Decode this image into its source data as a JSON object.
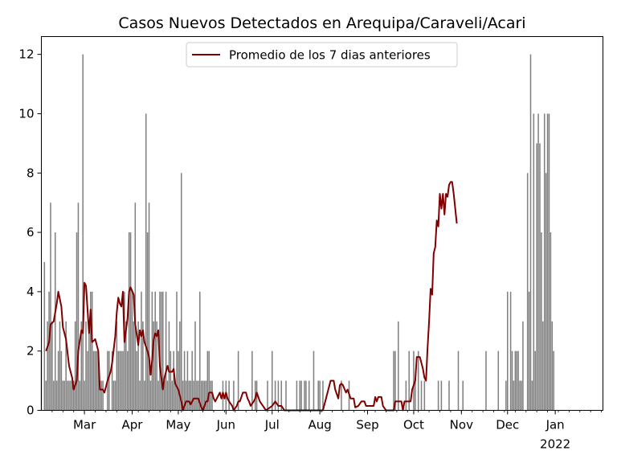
{
  "chart_data": {
    "type": "bar+line",
    "title": "Casos Nuevos Detectados en Arequipa/Caraveli/Acari",
    "xlabel": "",
    "ylabel": "",
    "x_range": [
      "2021-02-01",
      "2022-02-01"
    ],
    "ylim": [
      0,
      12.6
    ],
    "y_ticks": [
      0,
      2,
      4,
      6,
      8,
      10,
      12
    ],
    "x_ticks": [
      {
        "date": "2021-03-01",
        "label": "Mar",
        "sub": ""
      },
      {
        "date": "2021-04-01",
        "label": "Apr",
        "sub": ""
      },
      {
        "date": "2021-05-01",
        "label": "May",
        "sub": ""
      },
      {
        "date": "2021-06-01",
        "label": "Jun",
        "sub": ""
      },
      {
        "date": "2021-07-01",
        "label": "Jul",
        "sub": ""
      },
      {
        "date": "2021-08-01",
        "label": "Aug",
        "sub": ""
      },
      {
        "date": "2021-09-01",
        "label": "Sep",
        "sub": ""
      },
      {
        "date": "2021-10-01",
        "label": "Oct",
        "sub": ""
      },
      {
        "date": "2021-11-01",
        "label": "Nov",
        "sub": ""
      },
      {
        "date": "2021-12-01",
        "label": "Dec",
        "sub": ""
      },
      {
        "date": "2022-01-01",
        "label": "Jan",
        "sub": "2022"
      }
    ],
    "grid": false,
    "legend": {
      "placement": "top-center",
      "entries": [
        "Promedio de los 7 dias anteriores"
      ]
    },
    "colors": {
      "bars": "#808080",
      "line": "#800000"
    },
    "series": [
      {
        "kind": "bar",
        "start_date": "2021-02-01",
        "values": [
          2,
          0,
          5,
          1,
          3,
          4,
          7,
          3,
          1,
          6,
          1,
          2,
          3,
          2,
          1,
          1,
          3,
          1,
          1,
          1,
          1,
          1,
          3,
          6,
          7,
          1,
          3,
          12,
          1,
          3,
          2,
          3,
          4,
          4,
          2,
          2,
          2,
          2,
          1,
          1,
          1,
          0,
          0,
          2,
          2,
          0,
          2,
          1,
          1,
          3,
          2,
          2,
          2,
          2,
          4,
          3,
          2,
          6,
          6,
          4,
          3,
          7,
          2,
          3,
          1,
          4,
          3,
          1,
          10,
          6,
          7,
          1,
          4,
          3,
          4,
          3,
          1,
          4,
          4,
          4,
          1,
          4,
          1,
          3,
          2,
          1,
          2,
          1,
          4,
          2,
          3,
          8,
          1,
          2,
          1,
          2,
          1,
          1,
          2,
          1,
          3,
          1,
          1,
          4,
          1,
          1,
          1,
          1,
          2,
          2,
          1,
          1,
          0,
          0,
          0,
          0,
          0,
          0,
          1,
          0,
          1,
          0,
          1,
          0,
          0,
          1,
          0,
          0,
          2,
          0,
          0,
          0,
          0,
          0,
          0,
          0,
          0,
          2,
          0,
          1,
          1,
          0,
          0,
          0,
          0,
          0,
          0,
          1,
          0,
          0,
          2,
          0,
          1,
          0,
          1,
          0,
          1,
          0,
          0,
          1,
          0,
          0,
          0,
          0,
          0,
          0,
          1,
          0,
          1,
          1,
          0,
          1,
          1,
          0,
          1,
          0,
          0,
          2,
          0,
          0,
          1,
          1,
          0,
          1,
          0,
          0,
          0,
          0,
          0,
          0,
          0,
          0,
          0,
          0,
          0,
          1,
          0,
          0,
          0,
          0,
          1,
          0,
          0,
          0,
          0,
          0,
          0,
          0,
          0,
          0,
          0,
          0,
          0,
          0,
          0,
          0,
          0,
          0,
          0,
          0,
          0,
          0,
          0,
          0,
          0,
          0,
          0,
          0,
          0,
          2,
          2,
          0,
          3,
          0,
          0,
          0,
          0,
          1,
          0,
          2,
          0,
          0,
          2,
          1,
          0,
          2,
          0,
          1,
          0,
          1,
          0,
          0,
          0,
          0,
          0,
          0,
          0,
          0,
          1,
          0,
          1,
          0,
          0,
          0,
          0,
          1,
          0,
          0,
          0,
          0,
          0,
          2,
          0,
          0,
          1,
          0,
          0,
          0,
          0,
          0,
          0,
          0,
          0,
          0,
          0,
          0,
          0,
          0,
          0,
          2,
          0,
          0,
          0,
          0,
          0,
          0,
          0,
          2,
          0,
          0,
          0,
          0,
          1,
          4,
          0,
          4,
          2,
          1,
          2,
          2,
          2,
          1,
          1,
          3,
          0,
          0,
          8,
          4,
          12,
          1,
          10,
          2,
          9,
          10,
          9,
          6,
          3,
          10,
          8,
          10,
          10,
          6,
          3,
          2
        ]
      },
      {
        "kind": "line",
        "name": "Promedio de los 7 dias anteriores",
        "start_date": "2021-02-04",
        "points": [
          [
            0,
            2.0
          ],
          [
            2,
            2.3
          ],
          [
            3,
            2.9
          ],
          [
            5,
            3.0
          ],
          [
            6,
            3.3
          ],
          [
            7,
            3.6
          ],
          [
            8,
            4.0
          ],
          [
            10,
            3.5
          ],
          [
            11,
            2.8
          ],
          [
            13,
            2.4
          ],
          [
            15,
            1.5
          ],
          [
            17,
            1.1
          ],
          [
            18,
            0.7
          ],
          [
            20,
            1.0
          ],
          [
            21,
            2.0
          ],
          [
            23,
            2.7
          ],
          [
            24,
            2.6
          ],
          [
            25,
            4.3
          ],
          [
            26,
            4.2
          ],
          [
            27,
            3.4
          ],
          [
            28,
            2.6
          ],
          [
            29,
            3.4
          ],
          [
            30,
            2.3
          ],
          [
            32,
            2.4
          ],
          [
            34,
            2.0
          ],
          [
            35,
            0.7
          ],
          [
            37,
            0.7
          ],
          [
            38,
            0.6
          ],
          [
            40,
            1.0
          ],
          [
            42,
            1.3
          ],
          [
            43,
            1.6
          ],
          [
            45,
            2.5
          ],
          [
            46,
            3.3
          ],
          [
            47,
            3.8
          ],
          [
            48,
            3.6
          ],
          [
            49,
            3.5
          ],
          [
            50,
            4.0
          ],
          [
            51,
            2.3
          ],
          [
            53,
            3.1
          ],
          [
            54,
            4.0
          ],
          [
            55,
            4.15
          ],
          [
            57,
            3.9
          ],
          [
            58,
            2.9
          ],
          [
            60,
            2.2
          ],
          [
            61,
            2.7
          ],
          [
            62,
            2.5
          ],
          [
            63,
            2.7
          ],
          [
            64,
            2.3
          ],
          [
            66,
            2.0
          ],
          [
            67,
            1.8
          ],
          [
            68,
            1.2
          ],
          [
            69,
            1.7
          ],
          [
            70,
            2.4
          ],
          [
            71,
            2.6
          ],
          [
            72,
            2.5
          ],
          [
            73,
            2.7
          ],
          [
            74,
            1.5
          ],
          [
            76,
            0.7
          ],
          [
            77,
            1.1
          ],
          [
            79,
            1.5
          ],
          [
            80,
            1.3
          ],
          [
            82,
            1.3
          ],
          [
            83,
            1.4
          ],
          [
            84,
            0.9
          ],
          [
            86,
            0.7
          ],
          [
            88,
            0.3
          ],
          [
            89,
            0.0
          ],
          [
            91,
            0.3
          ],
          [
            93,
            0.3
          ],
          [
            94,
            0.2
          ],
          [
            96,
            0.4
          ],
          [
            99,
            0.4
          ],
          [
            101,
            0.1
          ],
          [
            102,
            0.0
          ],
          [
            104,
            0.3
          ],
          [
            105,
            0.3
          ],
          [
            106,
            0.6
          ],
          [
            108,
            0.6
          ],
          [
            109,
            0.4
          ],
          [
            110,
            0.3
          ],
          [
            112,
            0.5
          ],
          [
            113,
            0.6
          ],
          [
            114,
            0.4
          ],
          [
            115,
            0.6
          ],
          [
            116,
            0.4
          ],
          [
            117,
            0.6
          ],
          [
            118,
            0.4
          ],
          [
            119,
            0.3
          ],
          [
            121,
            0.15
          ],
          [
            122,
            0.0
          ],
          [
            124,
            0.15
          ],
          [
            125,
            0.3
          ],
          [
            126,
            0.3
          ],
          [
            127,
            0.45
          ],
          [
            128,
            0.6
          ],
          [
            130,
            0.6
          ],
          [
            131,
            0.4
          ],
          [
            132,
            0.3
          ],
          [
            133,
            0.15
          ],
          [
            135,
            0.3
          ],
          [
            136,
            0.4
          ],
          [
            137,
            0.6
          ],
          [
            139,
            0.3
          ],
          [
            141,
            0.15
          ],
          [
            143,
            0.0
          ],
          [
            147,
            0.15
          ],
          [
            149,
            0.3
          ],
          [
            151,
            0.15
          ],
          [
            153,
            0.15
          ],
          [
            155,
            0.0
          ],
          [
            180,
            0.0
          ],
          [
            183,
            0.6
          ],
          [
            185,
            1.0
          ],
          [
            187,
            1.0
          ],
          [
            188,
            0.7
          ],
          [
            189,
            0.55
          ],
          [
            190,
            0.4
          ],
          [
            191,
            0.85
          ],
          [
            192,
            0.9
          ],
          [
            193,
            0.85
          ],
          [
            195,
            0.6
          ],
          [
            196,
            0.7
          ],
          [
            198,
            0.4
          ],
          [
            200,
            0.4
          ],
          [
            201,
            0.1
          ],
          [
            203,
            0.15
          ],
          [
            205,
            0.3
          ],
          [
            207,
            0.3
          ],
          [
            208,
            0.15
          ],
          [
            210,
            0.15
          ],
          [
            213,
            0.15
          ],
          [
            214,
            0.45
          ],
          [
            215,
            0.3
          ],
          [
            216,
            0.45
          ],
          [
            218,
            0.45
          ],
          [
            219,
            0.15
          ],
          [
            221,
            0.0
          ],
          [
            226,
            0.0
          ],
          [
            227,
            0.3
          ],
          [
            231,
            0.3
          ],
          [
            232,
            0.0
          ],
          [
            233,
            0.3
          ],
          [
            237,
            0.3
          ],
          [
            238,
            0.7
          ],
          [
            240,
            1.0
          ],
          [
            241,
            1.8
          ],
          [
            243,
            1.8
          ],
          [
            245,
            1.4
          ],
          [
            246,
            1.1
          ],
          [
            247,
            1.0
          ],
          [
            248,
            2.1
          ],
          [
            249,
            3.0
          ],
          [
            250,
            4.1
          ],
          [
            251,
            3.9
          ],
          [
            252,
            5.3
          ],
          [
            253,
            5.5
          ],
          [
            254,
            6.4
          ],
          [
            255,
            6.2
          ],
          [
            256,
            7.3
          ],
          [
            257,
            6.8
          ],
          [
            258,
            7.3
          ],
          [
            259,
            6.6
          ],
          [
            260,
            7.3
          ],
          [
            261,
            7.2
          ],
          [
            262,
            7.6
          ],
          [
            263,
            7.7
          ],
          [
            264,
            7.7
          ],
          [
            265,
            7.3
          ],
          [
            267,
            6.3
          ]
        ]
      }
    ]
  }
}
